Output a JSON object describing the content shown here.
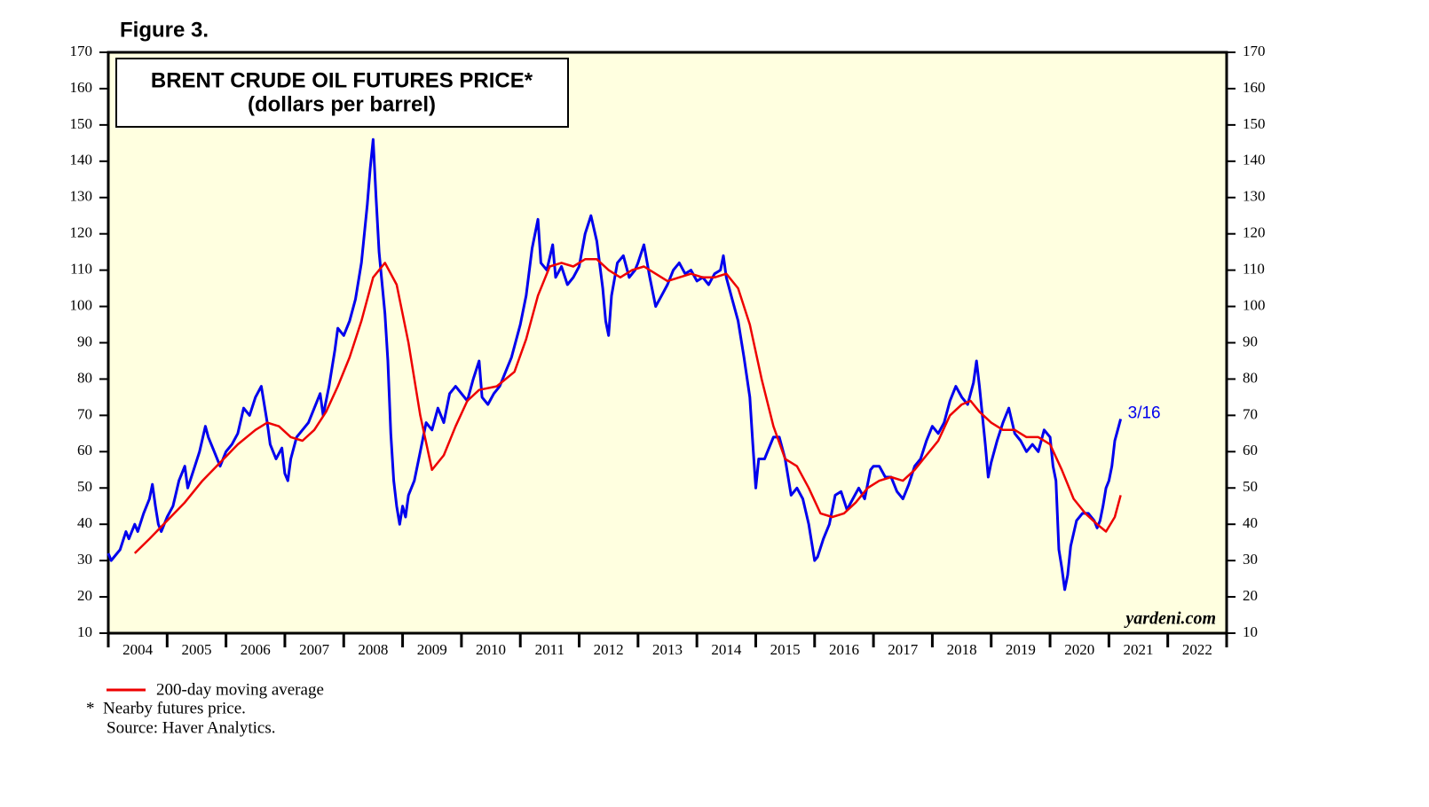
{
  "chart_data": {
    "type": "line",
    "figure_label": "Figure 3.",
    "title": "BRENT CRUDE OIL FUTURES PRICE*",
    "subtitle": "(dollars per barrel)",
    "watermark": "yardeni.com",
    "annotation": {
      "text": "3/16",
      "x": 2021.2,
      "y": 69
    },
    "footnotes": [
      "*  Nearby futures price.",
      "Source: Haver Analytics."
    ],
    "background": "#ffffe0",
    "xlim": [
      2004,
      2023
    ],
    "xticks": [
      {
        "value": 2004.5,
        "label": "2004"
      },
      {
        "value": 2005.5,
        "label": "2005"
      },
      {
        "value": 2006.5,
        "label": "2006"
      },
      {
        "value": 2007.5,
        "label": "2007"
      },
      {
        "value": 2008.5,
        "label": "2008"
      },
      {
        "value": 2009.5,
        "label": "2009"
      },
      {
        "value": 2010.5,
        "label": "2010"
      },
      {
        "value": 2011.5,
        "label": "2011"
      },
      {
        "value": 2012.5,
        "label": "2012"
      },
      {
        "value": 2013.5,
        "label": "2013"
      },
      {
        "value": 2014.5,
        "label": "2014"
      },
      {
        "value": 2015.5,
        "label": "2015"
      },
      {
        "value": 2016.5,
        "label": "2016"
      },
      {
        "value": 2017.5,
        "label": "2017"
      },
      {
        "value": 2018.5,
        "label": "2018"
      },
      {
        "value": 2019.5,
        "label": "2019"
      },
      {
        "value": 2020.5,
        "label": "2020"
      },
      {
        "value": 2021.5,
        "label": "2021"
      },
      {
        "value": 2022.5,
        "label": "2022"
      }
    ],
    "ylim": [
      10,
      170
    ],
    "yticks": [
      10,
      20,
      30,
      40,
      50,
      60,
      70,
      80,
      90,
      100,
      110,
      120,
      130,
      140,
      150,
      160,
      170
    ],
    "series": [
      {
        "name": "Brent crude oil futures price",
        "color": "#0000ee",
        "x": [
          2004.0,
          2004.05,
          2004.1,
          2004.2,
          2004.3,
          2004.35,
          2004.45,
          2004.5,
          2004.6,
          2004.7,
          2004.75,
          2004.8,
          2004.85,
          2004.9,
          2005.0,
          2005.1,
          2005.2,
          2005.3,
          2005.35,
          2005.45,
          2005.55,
          2005.65,
          2005.7,
          2005.8,
          2005.9,
          2006.0,
          2006.1,
          2006.2,
          2006.3,
          2006.4,
          2006.5,
          2006.6,
          2006.7,
          2006.75,
          2006.85,
          2006.95,
          2007.0,
          2007.05,
          2007.1,
          2007.2,
          2007.3,
          2007.4,
          2007.5,
          2007.6,
          2007.65,
          2007.75,
          2007.85,
          2007.9,
          2008.0,
          2008.1,
          2008.2,
          2008.3,
          2008.4,
          2008.45,
          2008.5,
          2008.55,
          2008.6,
          2008.7,
          2008.75,
          2008.8,
          2008.85,
          2008.9,
          2008.95,
          2009.0,
          2009.05,
          2009.1,
          2009.2,
          2009.3,
          2009.4,
          2009.5,
          2009.6,
          2009.7,
          2009.8,
          2009.9,
          2010.0,
          2010.1,
          2010.2,
          2010.3,
          2010.35,
          2010.45,
          2010.55,
          2010.65,
          2010.75,
          2010.85,
          2010.95,
          2011.0,
          2011.1,
          2011.2,
          2011.3,
          2011.35,
          2011.45,
          2011.55,
          2011.6,
          2011.7,
          2011.8,
          2011.9,
          2012.0,
          2012.1,
          2012.2,
          2012.3,
          2012.4,
          2012.45,
          2012.5,
          2012.55,
          2012.65,
          2012.75,
          2012.85,
          2012.95,
          2013.0,
          2013.1,
          2013.2,
          2013.3,
          2013.4,
          2013.5,
          2013.6,
          2013.7,
          2013.8,
          2013.9,
          2014.0,
          2014.1,
          2014.2,
          2014.3,
          2014.4,
          2014.45,
          2014.5,
          2014.6,
          2014.7,
          2014.8,
          2014.9,
          2014.95,
          2015.0,
          2015.05,
          2015.15,
          2015.3,
          2015.4,
          2015.5,
          2015.6,
          2015.7,
          2015.8,
          2015.9,
          2016.0,
          2016.05,
          2016.15,
          2016.25,
          2016.35,
          2016.45,
          2016.55,
          2016.65,
          2016.75,
          2016.85,
          2016.95,
          2017.0,
          2017.1,
          2017.2,
          2017.3,
          2017.4,
          2017.5,
          2017.6,
          2017.7,
          2017.8,
          2017.9,
          2018.0,
          2018.1,
          2018.2,
          2018.3,
          2018.4,
          2018.5,
          2018.6,
          2018.7,
          2018.75,
          2018.8,
          2018.9,
          2018.95,
          2019.0,
          2019.1,
          2019.2,
          2019.3,
          2019.4,
          2019.5,
          2019.6,
          2019.7,
          2019.8,
          2019.9,
          2020.0,
          2020.05,
          2020.1,
          2020.15,
          2020.2,
          2020.25,
          2020.3,
          2020.35,
          2020.45,
          2020.55,
          2020.65,
          2020.75,
          2020.8,
          2020.85,
          2020.9,
          2020.95,
          2021.0,
          2021.05,
          2021.1,
          2021.15,
          2021.2
        ],
        "values": [
          32,
          30,
          31,
          33,
          38,
          36,
          40,
          38,
          43,
          47,
          51,
          45,
          40,
          38,
          42,
          45,
          52,
          56,
          50,
          55,
          60,
          67,
          64,
          60,
          56,
          60,
          62,
          65,
          72,
          70,
          75,
          78,
          68,
          62,
          58,
          61,
          54,
          52,
          58,
          64,
          66,
          68,
          72,
          76,
          70,
          78,
          88,
          94,
          92,
          96,
          102,
          112,
          128,
          138,
          146,
          130,
          115,
          98,
          85,
          65,
          52,
          45,
          40,
          45,
          42,
          48,
          52,
          60,
          68,
          66,
          72,
          68,
          76,
          78,
          76,
          74,
          80,
          85,
          75,
          73,
          76,
          78,
          82,
          86,
          92,
          95,
          103,
          116,
          124,
          112,
          110,
          117,
          108,
          111,
          106,
          108,
          111,
          120,
          125,
          118,
          105,
          96,
          92,
          103,
          112,
          114,
          108,
          110,
          112,
          117,
          108,
          100,
          103,
          106,
          110,
          112,
          109,
          110,
          107,
          108,
          106,
          109,
          110,
          114,
          108,
          102,
          96,
          86,
          75,
          62,
          50,
          58,
          58,
          64,
          64,
          58,
          48,
          50,
          47,
          40,
          30,
          31,
          36,
          40,
          48,
          49,
          44,
          47,
          50,
          47,
          55,
          56,
          56,
          53,
          53,
          49,
          47,
          51,
          56,
          58,
          63,
          67,
          65,
          68,
          74,
          78,
          75,
          73,
          79,
          85,
          78,
          62,
          53,
          57,
          63,
          68,
          72,
          65,
          63,
          60,
          62,
          60,
          66,
          64,
          56,
          52,
          33,
          28,
          22,
          26,
          34,
          41,
          43,
          43,
          41,
          39,
          41,
          45,
          50,
          52,
          56,
          63,
          66,
          69
        ]
      },
      {
        "name": "200-day moving average",
        "color": "#ee0000",
        "x": [
          2004.45,
          2004.7,
          2005.0,
          2005.3,
          2005.6,
          2005.9,
          2006.2,
          2006.5,
          2006.7,
          2006.9,
          2007.1,
          2007.3,
          2007.5,
          2007.7,
          2007.9,
          2008.1,
          2008.3,
          2008.5,
          2008.7,
          2008.9,
          2009.1,
          2009.3,
          2009.5,
          2009.7,
          2009.9,
          2010.1,
          2010.3,
          2010.6,
          2010.9,
          2011.1,
          2011.3,
          2011.5,
          2011.7,
          2011.9,
          2012.1,
          2012.3,
          2012.5,
          2012.7,
          2012.9,
          2013.1,
          2013.3,
          2013.5,
          2013.7,
          2013.9,
          2014.1,
          2014.3,
          2014.5,
          2014.7,
          2014.9,
          2015.1,
          2015.3,
          2015.5,
          2015.7,
          2015.9,
          2016.1,
          2016.3,
          2016.5,
          2016.7,
          2016.9,
          2017.1,
          2017.3,
          2017.5,
          2017.7,
          2017.9,
          2018.1,
          2018.3,
          2018.5,
          2018.65,
          2018.8,
          2019.0,
          2019.2,
          2019.4,
          2019.6,
          2019.8,
          2020.0,
          2020.2,
          2020.4,
          2020.6,
          2020.8,
          2020.95,
          2021.1,
          2021.2
        ],
        "values": [
          32,
          36,
          41,
          46,
          52,
          57,
          62,
          66,
          68,
          67,
          64,
          63,
          66,
          71,
          78,
          86,
          96,
          108,
          112,
          106,
          90,
          70,
          55,
          59,
          67,
          74,
          77,
          78,
          82,
          91,
          103,
          111,
          112,
          111,
          113,
          113,
          110,
          108,
          110,
          111,
          109,
          107,
          108,
          109,
          108,
          108,
          109,
          105,
          95,
          80,
          67,
          58,
          56,
          50,
          43,
          42,
          43,
          46,
          50,
          52,
          53,
          52,
          55,
          59,
          63,
          70,
          73,
          74,
          71,
          68,
          66,
          66,
          64,
          64,
          62,
          55,
          47,
          43,
          40,
          38,
          42,
          48
        ]
      }
    ]
  }
}
